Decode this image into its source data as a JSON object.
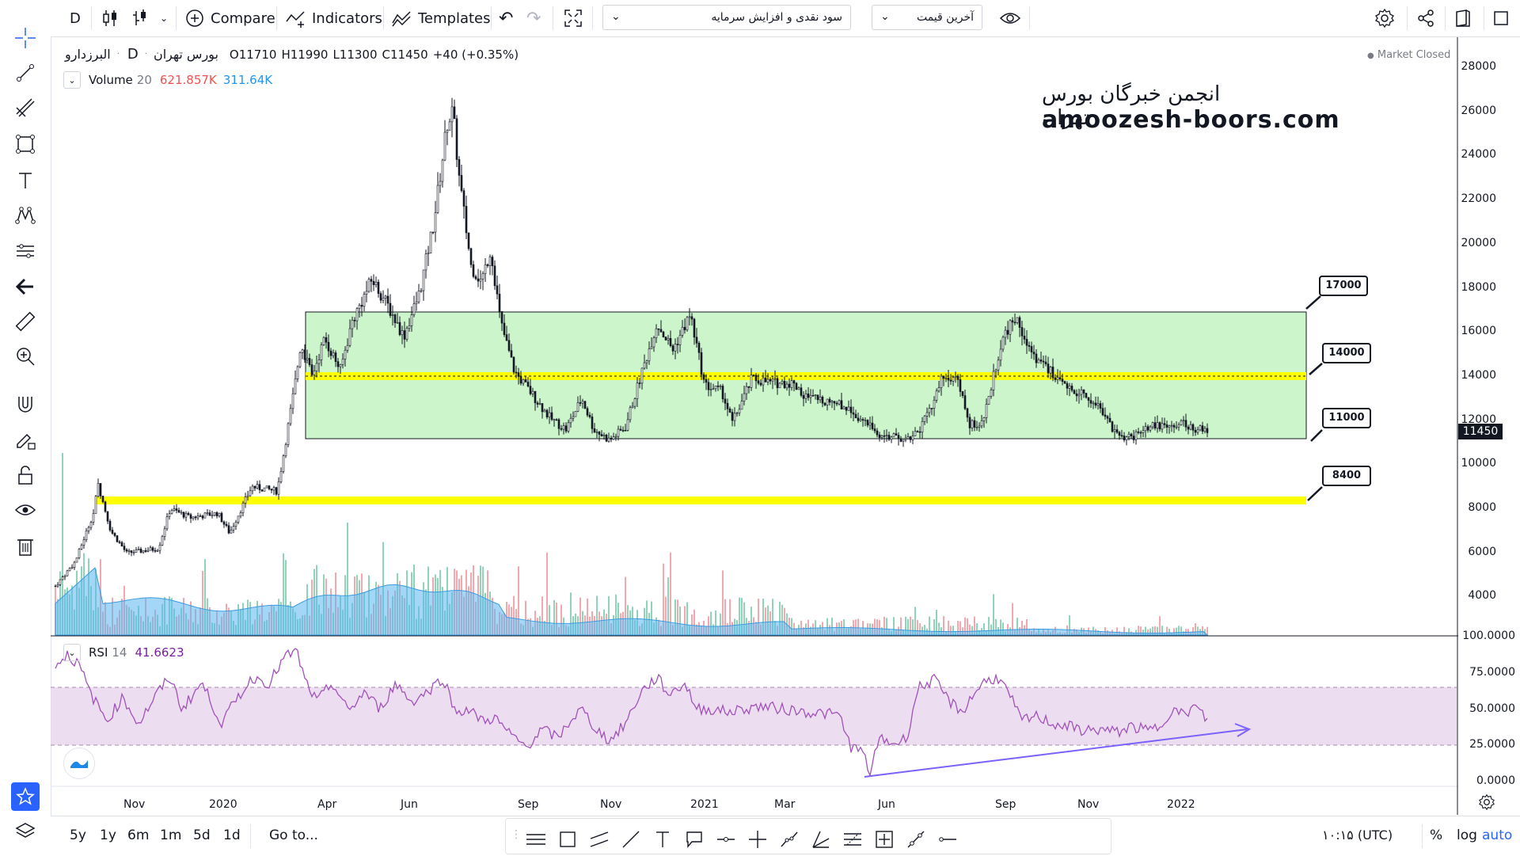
{
  "toolbar": {
    "interval": "D",
    "compare_label": "Compare",
    "indicators_label": "Indicators",
    "templates_label": "Templates",
    "symbol_dropdown": "سود نقدی و افزایش سرمایه",
    "price_dropdown": "آخرین قیمت"
  },
  "legend": {
    "symbol_name": "البرزدارو",
    "exchange": "بورس تهران",
    "interval": "D",
    "open": "O11710",
    "high": "H11990",
    "low": "L11300",
    "close": "C11450",
    "change": "+40 (+0.35%)",
    "volume_label": "Volume",
    "volume_period": "20",
    "volume_value1": "621.857K",
    "volume_value2": "311.64K",
    "market_status": "Market Closed"
  },
  "watermark": {
    "line1": "انجمن خبرگان بورس تهران",
    "line2": "amoozesh-boors.com"
  },
  "price_axis": {
    "ticks": [
      "28000",
      "26000",
      "24000",
      "22000",
      "20000",
      "18000",
      "16000",
      "14000",
      "12000",
      "10000",
      "8000",
      "6000",
      "4000"
    ],
    "current_price": "11450"
  },
  "rsi": {
    "label": "RSI",
    "period": "14",
    "value": "41.6623",
    "ticks": [
      "100.0000",
      "75.0000",
      "50.0000",
      "25.0000",
      "0.0000"
    ]
  },
  "time_axis": {
    "ticks": [
      "Nov",
      "2020",
      "Apr",
      "Jun",
      "Sep",
      "Nov",
      "2021",
      "Mar",
      "Jun",
      "Sep",
      "Nov",
      "2022"
    ]
  },
  "annotations": {
    "callouts": [
      "17000",
      "14000",
      "11000",
      "8400"
    ],
    "colors": {
      "range_fill": "#ccf5cc",
      "yellow_line": "#ffff00",
      "rsi_band": "#e8d5ec",
      "rsi_line": "#a052b8",
      "trend_arrow": "#7b61ff",
      "up_volume": "#8fd4b9",
      "down_volume": "#f2a8ae",
      "volume_ma": "#5ab6f0"
    }
  },
  "bottom": {
    "ranges": [
      "5y",
      "1y",
      "6m",
      "1m",
      "5d",
      "1d"
    ],
    "goto_label": "Go to...",
    "time_label": "۱۰:۱۵ (UTC)",
    "percent_label": "%",
    "log_label": "log",
    "auto_label": "auto"
  }
}
